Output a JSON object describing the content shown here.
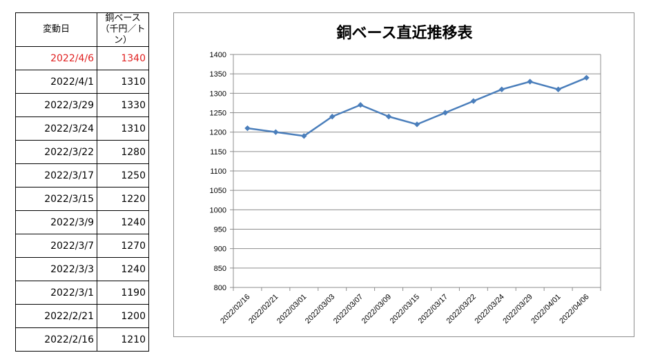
{
  "table": {
    "header": {
      "date": "変動日",
      "price_line1": "銅ベース",
      "price_line2": "（千円／トン）"
    },
    "rows": [
      {
        "date": "2022/4/6",
        "price": "1340"
      },
      {
        "date": "2022/4/1",
        "price": "1310"
      },
      {
        "date": "2022/3/29",
        "price": "1330"
      },
      {
        "date": "2022/3/24",
        "price": "1310"
      },
      {
        "date": "2022/3/22",
        "price": "1280"
      },
      {
        "date": "2022/3/17",
        "price": "1250"
      },
      {
        "date": "2022/3/15",
        "price": "1220"
      },
      {
        "date": "2022/3/9",
        "price": "1240"
      },
      {
        "date": "2022/3/7",
        "price": "1270"
      },
      {
        "date": "2022/3/3",
        "price": "1240"
      },
      {
        "date": "2022/3/1",
        "price": "1190"
      },
      {
        "date": "2022/2/21",
        "price": "1200"
      },
      {
        "date": "2022/2/16",
        "price": "1210"
      }
    ],
    "highlight_color": "#e02020"
  },
  "chart_data": {
    "type": "line",
    "title": "銅ベース直近推移表",
    "xlabel": "",
    "ylabel": "",
    "categories": [
      "2022/02/16",
      "2022/02/21",
      "2022/03/01",
      "2022/03/03",
      "2022/03/07",
      "2022/03/09",
      "2022/03/15",
      "2022/03/17",
      "2022/03/22",
      "2022/03/24",
      "2022/03/29",
      "2022/04/01",
      "2022/04/06"
    ],
    "series": [
      {
        "values": [
          1210,
          1200,
          1190,
          1240,
          1270,
          1240,
          1220,
          1250,
          1280,
          1310,
          1330,
          1310,
          1340
        ]
      }
    ],
    "ylim": [
      800,
      1400
    ],
    "yticks": [
      800,
      850,
      900,
      950,
      1000,
      1050,
      1100,
      1150,
      1200,
      1250,
      1300,
      1350,
      1400
    ],
    "grid": true,
    "legend": "none",
    "line_color": "#4a7ebb",
    "marker": "diamond"
  }
}
